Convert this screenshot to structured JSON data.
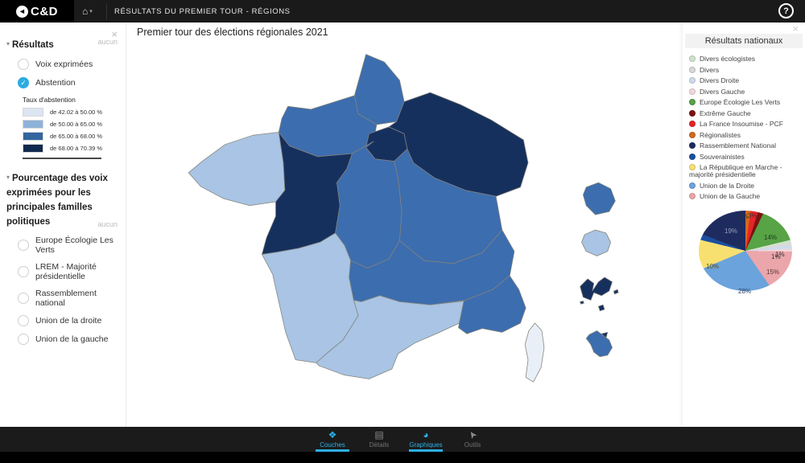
{
  "topbar": {
    "logo_text": "C&D",
    "logo_glyph": "◄",
    "home_glyph": "⌂",
    "caret_glyph": "▾",
    "title": "RÉSULTATS DU PREMIER TOUR - RÉGIONS",
    "help_label": "?"
  },
  "map": {
    "title": "Premier tour des élections régionales 2021",
    "close_glyph": "×"
  },
  "left_panel": {
    "close_glyph": "×",
    "section1": {
      "collapse_glyph": "▾",
      "title": "Résultats",
      "badge": "aucun",
      "check_glyph": "✓",
      "options": [
        {
          "label": "Voix exprimées",
          "checked": false
        },
        {
          "label": "Abstention",
          "checked": true
        }
      ],
      "legend_title": "Taux d'abstention",
      "legend": [
        {
          "label": "de 42.02 à 50.00 %",
          "color": "#dce6f2"
        },
        {
          "label": "de 50.00 à 65.00 %",
          "color": "#8fb2d8"
        },
        {
          "label": "de 65.00 à 68.00 %",
          "color": "#33669f"
        },
        {
          "label": "de 68.00 à 70.39 %",
          "color": "#12294f"
        }
      ]
    },
    "section2": {
      "collapse_glyph": "▾",
      "title": "Pourcentage des voix exprimées pour les principales familles politiques",
      "badge": "aucun",
      "options": [
        {
          "label": "Europe Écologie Les Verts",
          "checked": false
        },
        {
          "label": "LREM - Majorité présidentielle",
          "checked": false
        },
        {
          "label": "Rassemblement national",
          "checked": false
        },
        {
          "label": "Union de la droite",
          "checked": false
        },
        {
          "label": "Union de la gauche",
          "checked": false
        }
      ]
    }
  },
  "right_panel": {
    "close_glyph": "×",
    "title": "Résultats nationaux",
    "parties": [
      {
        "name": "Divers écologistes",
        "color": "#cfe2cc"
      },
      {
        "name": "Divers",
        "color": "#d9d9d9"
      },
      {
        "name": "Divers Droite",
        "color": "#ccdbed"
      },
      {
        "name": "Divers Gauche",
        "color": "#f2d7dc"
      },
      {
        "name": "Europe Écologie Les Verts",
        "color": "#57a345"
      },
      {
        "name": "Extrême Gauche",
        "color": "#7c1113"
      },
      {
        "name": "La France Insoumise - PCF",
        "color": "#e52528"
      },
      {
        "name": "Régionalistes",
        "color": "#d2691f"
      },
      {
        "name": "Rassemblement National",
        "color": "#1e2b5e"
      },
      {
        "name": "Souverainistes",
        "color": "#1b4fa0"
      },
      {
        "name": "La République en Marche - majorité présidentielle",
        "color": "#f8e070"
      },
      {
        "name": "Union de la Droite",
        "color": "#6ba3dc"
      },
      {
        "name": "Union de la Gauche",
        "color": "#eba6ab"
      }
    ]
  },
  "chart_data": {
    "type": "pie",
    "title": "Résultats nationaux",
    "clockwise": true,
    "start_angle_deg": 0,
    "series": [
      {
        "name": "Régionalistes",
        "value": 2,
        "color": "#d2691f",
        "label": "2%",
        "label_pos": [
          70,
          237
        ],
        "label_color": "#333333"
      },
      {
        "name": "La France Insoumise - PCF",
        "value": 3,
        "color": "#e52528",
        "label": "3%",
        "label_pos": [
          81,
          236
        ],
        "label_color": "#333333"
      },
      {
        "name": "Extrême Gauche",
        "value": 2,
        "color": "#7c1113",
        "label": "",
        "label_pos": [
          0,
          0
        ],
        "label_color": "#333333"
      },
      {
        "name": "Europe Écologie Les Verts",
        "value": 14,
        "color": "#57a345",
        "label": "14%",
        "label_pos": [
          101,
          263
        ],
        "label_color": "#1f3a1a"
      },
      {
        "name": "Divers écologistes",
        "value": 1,
        "color": "#cfe2cc",
        "label": "1%",
        "label_pos": [
          110,
          287
        ],
        "label_color": "#333333"
      },
      {
        "name": "Divers",
        "value": 1,
        "color": "#d9d9d9",
        "label": "1%",
        "label_pos": [
          115,
          284
        ],
        "label_color": "#333333"
      },
      {
        "name": "Divers Droite",
        "value": 1,
        "color": "#ccdbed",
        "label": "",
        "label_pos": [
          0,
          0
        ],
        "label_color": "#333333"
      },
      {
        "name": "Divers Gauche",
        "value": 1,
        "color": "#f2d7dc",
        "label": "",
        "label_pos": [
          0,
          0
        ],
        "label_color": "#333333"
      },
      {
        "name": "Union de la Gauche",
        "value": 15,
        "color": "#eba6ab",
        "label": "15%",
        "label_pos": [
          104,
          306
        ],
        "label_color": "#5a3436"
      },
      {
        "name": "Union de la Droite",
        "value": 28,
        "color": "#6ba3dc",
        "label": "28%",
        "label_pos": [
          69,
          330
        ],
        "label_color": "#1e3c5c"
      },
      {
        "name": "La République en Marche - majorité présidentielle",
        "value": 10,
        "color": "#f8e070",
        "label": "10%",
        "label_pos": [
          29,
          299
        ],
        "label_color": "#5c5214"
      },
      {
        "name": "Souverainistes",
        "value": 2,
        "color": "#1b4fa0",
        "label": "",
        "label_pos": [
          0,
          0
        ],
        "label_color": "#ffffff"
      },
      {
        "name": "Rassemblement National",
        "value": 19,
        "color": "#1e2b5e",
        "label": "19%",
        "label_pos": [
          52,
          255
        ],
        "label_color": "#9aa2bf"
      }
    ]
  },
  "choropleth": {
    "classes": {
      "light": "#a9c4e4",
      "medium": "#3c6dae",
      "dark": "#16305e",
      "verylight": "#e9eff7"
    },
    "regions": [
      {
        "name": "hauts-de-france",
        "class": "medium"
      },
      {
        "name": "normandie",
        "class": "medium"
      },
      {
        "name": "ile-de-france",
        "class": "dark"
      },
      {
        "name": "grand-est",
        "class": "dark"
      },
      {
        "name": "bretagne",
        "class": "light"
      },
      {
        "name": "pays-de-la-loire",
        "class": "dark"
      },
      {
        "name": "centre-val-de-loire",
        "class": "medium"
      },
      {
        "name": "bourgogne-franche-comte",
        "class": "medium"
      },
      {
        "name": "nouvelle-aquitaine",
        "class": "light"
      },
      {
        "name": "auvergne-rhone-alpes",
        "class": "medium"
      },
      {
        "name": "occitanie",
        "class": "light"
      },
      {
        "name": "provence-alpes-cote-d-azur",
        "class": "medium"
      },
      {
        "name": "corse",
        "class": "verylight"
      },
      {
        "name": "guyane",
        "class": "medium"
      },
      {
        "name": "la-reunion",
        "class": "light"
      },
      {
        "name": "guadeloupe",
        "class": "dark"
      },
      {
        "name": "martinique",
        "class": "medium"
      },
      {
        "name": "martinique-nord",
        "class": "dark"
      },
      {
        "name": "islet-1",
        "class": "dark"
      },
      {
        "name": "islet-2",
        "class": "dark"
      },
      {
        "name": "islet-3",
        "class": "dark"
      }
    ]
  },
  "tabs": [
    {
      "label": "Couches",
      "glyph": "❖",
      "icon": "layers-icon",
      "active": true
    },
    {
      "label": "Détails",
      "glyph": "▤",
      "icon": "details-icon",
      "active": false
    },
    {
      "label": "Graphiques",
      "glyph": "◕",
      "icon": "pie-icon",
      "active": true
    },
    {
      "label": "Outils",
      "glyph": "➤",
      "icon": "cursor-icon",
      "active": false
    }
  ]
}
